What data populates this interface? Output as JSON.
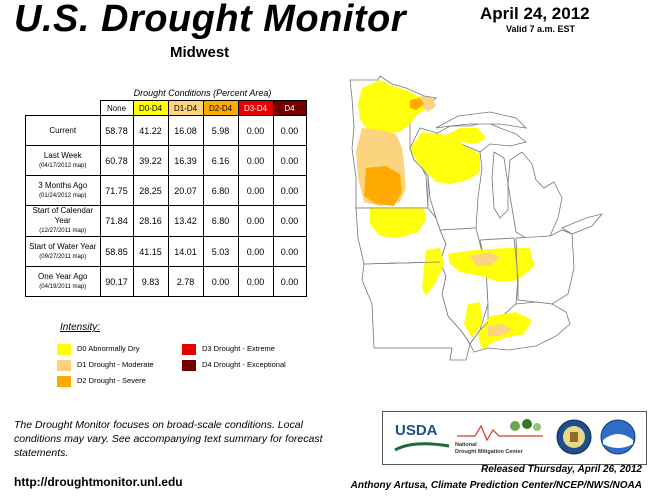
{
  "header": {
    "title": "U.S. Drought Monitor",
    "region": "Midwest",
    "date": "April 24, 2012",
    "valid": "Valid 7 a.m. EST"
  },
  "table": {
    "caption": "Drought Conditions (Percent Area)",
    "columns": [
      "None",
      "D0-D4",
      "D1-D4",
      "D2-D4",
      "D3-D4",
      "D4"
    ],
    "rows": [
      {
        "label": "Current",
        "sub": "",
        "values": [
          "58.78",
          "41.22",
          "16.08",
          "5.98",
          "0.00",
          "0.00"
        ]
      },
      {
        "label": "Last Week",
        "sub": "(04/17/2012 map)",
        "values": [
          "60.78",
          "39.22",
          "16.39",
          "6.16",
          "0.00",
          "0.00"
        ]
      },
      {
        "label": "3 Months Ago",
        "sub": "(01/24/2012 map)",
        "values": [
          "71.75",
          "28.25",
          "20.07",
          "6.80",
          "0.00",
          "0.00"
        ]
      },
      {
        "label": "Start of Calendar Year",
        "sub": "(12/27/2011 map)",
        "values": [
          "71.84",
          "28.16",
          "13.42",
          "6.80",
          "0.00",
          "0.00"
        ]
      },
      {
        "label": "Start of Water Year",
        "sub": "(09/27/2011 map)",
        "values": [
          "58.85",
          "41.15",
          "14.01",
          "5.03",
          "0.00",
          "0.00"
        ]
      },
      {
        "label": "One Year Ago",
        "sub": "(04/19/2011 map)",
        "values": [
          "90.17",
          "9.83",
          "2.78",
          "0.00",
          "0.00",
          "0.00"
        ]
      }
    ]
  },
  "legend": {
    "title": "Intensity:",
    "items": [
      {
        "label": "D0 Abnormally Dry",
        "color": "#ffff00"
      },
      {
        "label": "D1 Drought - Moderate",
        "color": "#fcd37f"
      },
      {
        "label": "D2 Drought - Severe",
        "color": "#ffaa00"
      },
      {
        "label": "D3 Drought - Extreme",
        "color": "#e60000"
      },
      {
        "label": "D4 Drought - Exceptional",
        "color": "#730000"
      }
    ]
  },
  "footer": {
    "note": "The Drought Monitor focuses on broad-scale conditions. Local conditions may vary. See accompanying text summary for forecast statements.",
    "url": "http://droughtmonitor.unl.edu",
    "released": "Released Thursday, April 26, 2012",
    "author": "Anthony Artusa, Climate Prediction Center/NCEP/NWS/NOAA"
  },
  "logos": {
    "usda": "USDA",
    "ndmc_line1": "National",
    "ndmc_line2": "Drought Mitigation Center"
  },
  "colors": {
    "d0": "#ffff00",
    "d1": "#fcd37f",
    "d2": "#ffaa00",
    "d3": "#e60000",
    "d4": "#730000"
  }
}
